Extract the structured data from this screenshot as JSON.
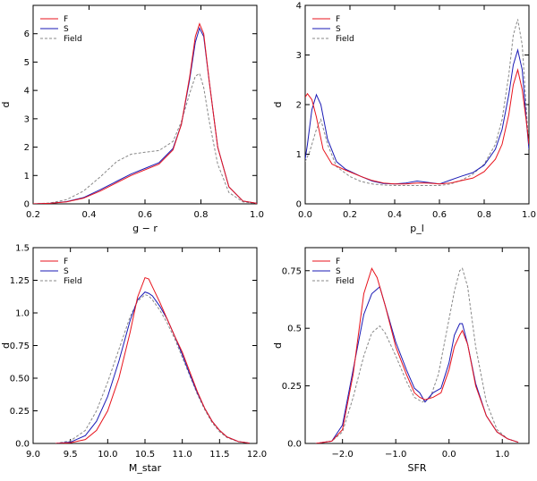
{
  "chart_data": [
    {
      "type": "line",
      "xlabel": "g − r",
      "ylabel": "d",
      "xlim": [
        0.2,
        1.0
      ],
      "ylim": [
        0,
        7
      ],
      "xticks": [
        "0.2",
        "0.4",
        "0.6",
        "0.8",
        "1.0"
      ],
      "xtick_values": [
        0.2,
        0.4,
        0.6,
        0.8,
        1.0
      ],
      "yticks": [
        "0",
        "1",
        "2",
        "3",
        "4",
        "5",
        "6"
      ],
      "ytick_values": [
        0,
        1,
        2,
        3,
        4,
        5,
        6
      ],
      "legend": "top-left",
      "grid": false,
      "series": [
        {
          "name": "F",
          "color": "#e8131c",
          "dash": "solid",
          "x": [
            0.2,
            0.26,
            0.32,
            0.38,
            0.44,
            0.5,
            0.55,
            0.6,
            0.65,
            0.7,
            0.73,
            0.76,
            0.78,
            0.795,
            0.81,
            0.83,
            0.86,
            0.9,
            0.95,
            1.0
          ],
          "y": [
            0,
            0.02,
            0.07,
            0.2,
            0.45,
            0.75,
            1.0,
            1.2,
            1.4,
            1.9,
            2.8,
            4.5,
            5.9,
            6.35,
            6.0,
            4.3,
            2.0,
            0.6,
            0.1,
            0.02
          ]
        },
        {
          "name": "S",
          "color": "#1a1ab5",
          "dash": "solid",
          "x": [
            0.2,
            0.26,
            0.32,
            0.38,
            0.44,
            0.5,
            0.55,
            0.6,
            0.65,
            0.7,
            0.73,
            0.76,
            0.78,
            0.795,
            0.81,
            0.83,
            0.86,
            0.9,
            0.95,
            1.0
          ],
          "y": [
            0,
            0.02,
            0.08,
            0.22,
            0.5,
            0.8,
            1.05,
            1.25,
            1.45,
            1.95,
            2.8,
            4.4,
            5.7,
            6.2,
            5.9,
            4.3,
            2.0,
            0.6,
            0.1,
            0.02
          ]
        },
        {
          "name": "Field",
          "color": "#888888",
          "dash": "dashed",
          "x": [
            0.2,
            0.26,
            0.32,
            0.38,
            0.44,
            0.5,
            0.55,
            0.6,
            0.65,
            0.7,
            0.73,
            0.76,
            0.78,
            0.795,
            0.81,
            0.83,
            0.86,
            0.9,
            0.95,
            1.0
          ],
          "y": [
            0,
            0.03,
            0.15,
            0.45,
            0.95,
            1.5,
            1.75,
            1.82,
            1.88,
            2.2,
            2.9,
            3.9,
            4.5,
            4.6,
            4.1,
            2.9,
            1.4,
            0.4,
            0.07,
            0.01
          ]
        }
      ]
    },
    {
      "type": "line",
      "xlabel": "p_l",
      "ylabel": "d",
      "xlim": [
        0.0,
        1.0
      ],
      "ylim": [
        0,
        4
      ],
      "xticks": [
        "0.0",
        "0.2",
        "0.4",
        "0.6",
        "0.8",
        "1.0"
      ],
      "xtick_values": [
        0.0,
        0.2,
        0.4,
        0.6,
        0.8,
        1.0
      ],
      "yticks": [
        "0",
        "1",
        "2",
        "3",
        "4"
      ],
      "ytick_values": [
        0,
        1,
        2,
        3,
        4
      ],
      "legend": "top-left",
      "grid": false,
      "series": [
        {
          "name": "F",
          "color": "#e8131c",
          "dash": "solid",
          "x": [
            0.0,
            0.01,
            0.03,
            0.05,
            0.08,
            0.12,
            0.18,
            0.25,
            0.3,
            0.35,
            0.4,
            0.45,
            0.5,
            0.55,
            0.6,
            0.65,
            0.7,
            0.75,
            0.8,
            0.85,
            0.88,
            0.91,
            0.93,
            0.95,
            0.97,
            0.99,
            1.0
          ],
          "y": [
            2.15,
            2.22,
            2.1,
            1.75,
            1.1,
            0.8,
            0.68,
            0.55,
            0.47,
            0.42,
            0.4,
            0.4,
            0.42,
            0.42,
            0.4,
            0.42,
            0.47,
            0.52,
            0.65,
            0.9,
            1.2,
            1.8,
            2.4,
            2.7,
            2.3,
            1.6,
            1.2
          ]
        },
        {
          "name": "S",
          "color": "#1a1ab5",
          "dash": "solid",
          "x": [
            0.0,
            0.01,
            0.03,
            0.05,
            0.07,
            0.1,
            0.14,
            0.18,
            0.25,
            0.3,
            0.35,
            0.4,
            0.45,
            0.5,
            0.55,
            0.6,
            0.65,
            0.7,
            0.75,
            0.8,
            0.85,
            0.88,
            0.91,
            0.93,
            0.95,
            0.97,
            0.99,
            1.0
          ],
          "y": [
            0.9,
            1.2,
            1.9,
            2.2,
            2.0,
            1.3,
            0.85,
            0.7,
            0.55,
            0.46,
            0.41,
            0.4,
            0.42,
            0.46,
            0.43,
            0.4,
            0.48,
            0.56,
            0.63,
            0.78,
            1.1,
            1.5,
            2.2,
            2.8,
            3.1,
            2.7,
            1.6,
            1.1
          ]
        },
        {
          "name": "Field",
          "color": "#888888",
          "dash": "dashed",
          "x": [
            0.0,
            0.02,
            0.05,
            0.07,
            0.1,
            0.14,
            0.2,
            0.25,
            0.3,
            0.35,
            0.4,
            0.45,
            0.5,
            0.55,
            0.6,
            0.65,
            0.7,
            0.75,
            0.8,
            0.85,
            0.88,
            0.91,
            0.93,
            0.95,
            0.97,
            0.99,
            1.0
          ],
          "y": [
            0.85,
            1.05,
            1.5,
            1.7,
            1.2,
            0.75,
            0.55,
            0.45,
            0.4,
            0.38,
            0.37,
            0.37,
            0.37,
            0.37,
            0.37,
            0.4,
            0.48,
            0.6,
            0.8,
            1.2,
            1.7,
            2.6,
            3.4,
            3.72,
            3.2,
            1.8,
            1.1
          ]
        }
      ]
    },
    {
      "type": "line",
      "xlabel": "M_star",
      "ylabel": "d",
      "xlim": [
        9.0,
        12.0
      ],
      "ylim": [
        0,
        1.5
      ],
      "xticks": [
        "9.0",
        "9.5",
        "10.0",
        "10.5",
        "11.0",
        "11.5",
        "12.0"
      ],
      "xtick_values": [
        9.0,
        9.5,
        10.0,
        10.5,
        11.0,
        11.5,
        12.0
      ],
      "yticks": [
        "0.0",
        "0.25",
        "0.50",
        "0.75",
        "1.0",
        "1.25",
        "1.5"
      ],
      "ytick_values": [
        0,
        0.25,
        0.5,
        0.75,
        1.0,
        1.25,
        1.5
      ],
      "legend": "top-left",
      "grid": false,
      "series": [
        {
          "name": "F",
          "color": "#e8131c",
          "dash": "solid",
          "x": [
            9.3,
            9.5,
            9.7,
            9.85,
            10.0,
            10.15,
            10.3,
            10.4,
            10.5,
            10.55,
            10.6,
            10.7,
            10.8,
            10.9,
            11.0,
            11.1,
            11.2,
            11.3,
            11.4,
            11.5,
            11.6,
            11.75,
            11.9
          ],
          "y": [
            0,
            0.005,
            0.03,
            0.1,
            0.25,
            0.5,
            0.85,
            1.12,
            1.27,
            1.26,
            1.2,
            1.08,
            0.95,
            0.82,
            0.7,
            0.55,
            0.4,
            0.27,
            0.17,
            0.1,
            0.05,
            0.015,
            0.003
          ]
        },
        {
          "name": "S",
          "color": "#1a1ab5",
          "dash": "solid",
          "x": [
            9.3,
            9.5,
            9.7,
            9.85,
            10.0,
            10.15,
            10.3,
            10.4,
            10.5,
            10.55,
            10.6,
            10.7,
            10.8,
            10.9,
            11.0,
            11.1,
            11.2,
            11.3,
            11.4,
            11.5,
            11.6,
            11.75,
            11.9
          ],
          "y": [
            0,
            0.01,
            0.06,
            0.17,
            0.36,
            0.63,
            0.94,
            1.1,
            1.16,
            1.15,
            1.13,
            1.05,
            0.95,
            0.82,
            0.68,
            0.53,
            0.39,
            0.27,
            0.17,
            0.1,
            0.05,
            0.015,
            0.003
          ]
        },
        {
          "name": "Field",
          "color": "#888888",
          "dash": "dashed",
          "x": [
            9.3,
            9.5,
            9.7,
            9.85,
            10.0,
            10.15,
            10.3,
            10.4,
            10.5,
            10.55,
            10.6,
            10.7,
            10.8,
            10.9,
            11.0,
            11.1,
            11.2,
            11.3,
            11.4,
            11.5,
            11.6,
            11.75,
            11.9
          ],
          "y": [
            0,
            0.02,
            0.1,
            0.25,
            0.47,
            0.72,
            0.97,
            1.09,
            1.14,
            1.13,
            1.1,
            1.02,
            0.92,
            0.8,
            0.66,
            0.52,
            0.38,
            0.26,
            0.16,
            0.09,
            0.045,
            0.013,
            0.003
          ]
        }
      ]
    },
    {
      "type": "line",
      "xlabel": "SFR",
      "ylabel": "d",
      "xlim": [
        -2.7,
        1.5
      ],
      "ylim": [
        0,
        0.85
      ],
      "xticks": [
        "−2.0",
        "−1.0",
        "0.0",
        "1.0"
      ],
      "xtick_values": [
        -2.0,
        -1.0,
        0.0,
        1.0
      ],
      "yticks": [
        "0.0",
        "0.25",
        "0.5",
        "0.75"
      ],
      "ytick_values": [
        0,
        0.25,
        0.5,
        0.75
      ],
      "legend": "top-left",
      "grid": false,
      "series": [
        {
          "name": "F",
          "color": "#e8131c",
          "dash": "solid",
          "x": [
            -2.5,
            -2.2,
            -2.0,
            -1.8,
            -1.6,
            -1.45,
            -1.35,
            -1.2,
            -1.0,
            -0.8,
            -0.65,
            -0.55,
            -0.45,
            -0.3,
            -0.15,
            0.0,
            0.1,
            0.2,
            0.25,
            0.35,
            0.5,
            0.7,
            0.9,
            1.1,
            1.3
          ],
          "y": [
            0,
            0.01,
            0.06,
            0.3,
            0.65,
            0.76,
            0.72,
            0.6,
            0.42,
            0.3,
            0.22,
            0.2,
            0.19,
            0.2,
            0.22,
            0.32,
            0.42,
            0.47,
            0.49,
            0.43,
            0.25,
            0.12,
            0.05,
            0.02,
            0.005
          ]
        },
        {
          "name": "S",
          "color": "#1a1ab5",
          "dash": "solid",
          "x": [
            -2.5,
            -2.2,
            -2.0,
            -1.8,
            -1.6,
            -1.45,
            -1.3,
            -1.2,
            -1.0,
            -0.8,
            -0.65,
            -0.55,
            -0.45,
            -0.3,
            -0.15,
            0.0,
            0.1,
            0.2,
            0.25,
            0.35,
            0.5,
            0.7,
            0.9,
            1.1,
            1.3
          ],
          "y": [
            0,
            0.01,
            0.08,
            0.32,
            0.56,
            0.65,
            0.68,
            0.6,
            0.44,
            0.32,
            0.24,
            0.22,
            0.18,
            0.22,
            0.24,
            0.35,
            0.47,
            0.52,
            0.52,
            0.43,
            0.26,
            0.12,
            0.05,
            0.02,
            0.005
          ]
        },
        {
          "name": "Field",
          "color": "#888888",
          "dash": "dashed",
          "x": [
            -2.5,
            -2.2,
            -2.0,
            -1.8,
            -1.6,
            -1.45,
            -1.3,
            -1.2,
            -1.0,
            -0.8,
            -0.65,
            -0.5,
            -0.35,
            -0.2,
            -0.05,
            0.1,
            0.2,
            0.25,
            0.35,
            0.5,
            0.7,
            0.9,
            1.1,
            1.3
          ],
          "y": [
            0,
            0.01,
            0.05,
            0.2,
            0.38,
            0.48,
            0.51,
            0.48,
            0.38,
            0.27,
            0.2,
            0.18,
            0.2,
            0.3,
            0.48,
            0.66,
            0.75,
            0.76,
            0.68,
            0.42,
            0.18,
            0.06,
            0.02,
            0.005
          ]
        }
      ]
    }
  ]
}
